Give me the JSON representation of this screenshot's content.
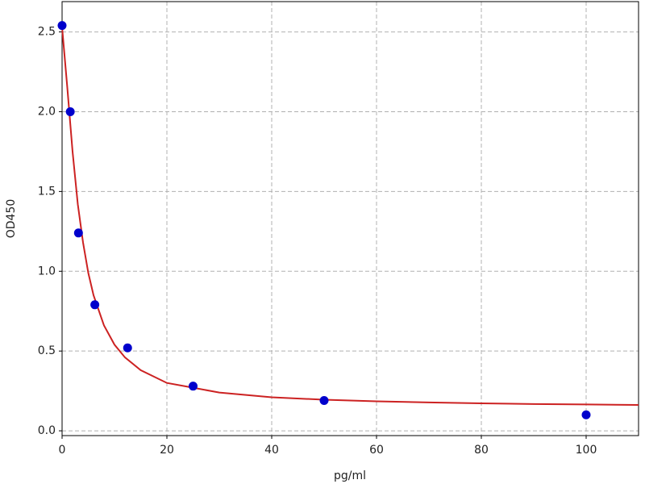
{
  "chart_data": {
    "type": "scatter",
    "x_label": "pg/ml",
    "y_label": "OD450",
    "x": [
      0,
      1.5625,
      3.125,
      6.25,
      12.5,
      25,
      50,
      100
    ],
    "values": [
      2.54,
      2.0,
      1.24,
      0.79,
      0.52,
      0.28,
      0.19,
      0.1
    ],
    "color": "#0000cc",
    "fit": {
      "type": "line",
      "color": "#cc2222",
      "x": [
        0,
        1,
        2,
        3,
        4,
        5,
        6,
        8,
        10,
        12,
        15,
        20,
        25,
        30,
        40,
        50,
        60,
        70,
        80,
        90,
        100,
        110
      ],
      "values": [
        2.53,
        2.15,
        1.75,
        1.42,
        1.18,
        0.99,
        0.85,
        0.66,
        0.54,
        0.46,
        0.38,
        0.3,
        0.27,
        0.24,
        0.21,
        0.195,
        0.185,
        0.178,
        0.172,
        0.168,
        0.165,
        0.162
      ]
    },
    "xlim": [
      0,
      110
    ],
    "ylim": [
      -0.03,
      2.69
    ],
    "xticks": [
      0,
      20,
      40,
      60,
      80,
      100
    ],
    "yticks": [
      {
        "value": 0,
        "label": "0.0"
      },
      0.5,
      {
        "value": 1,
        "label": "1.0"
      },
      1.5,
      {
        "value": 2,
        "label": "2.0"
      },
      2.5
    ],
    "grid": true
  }
}
